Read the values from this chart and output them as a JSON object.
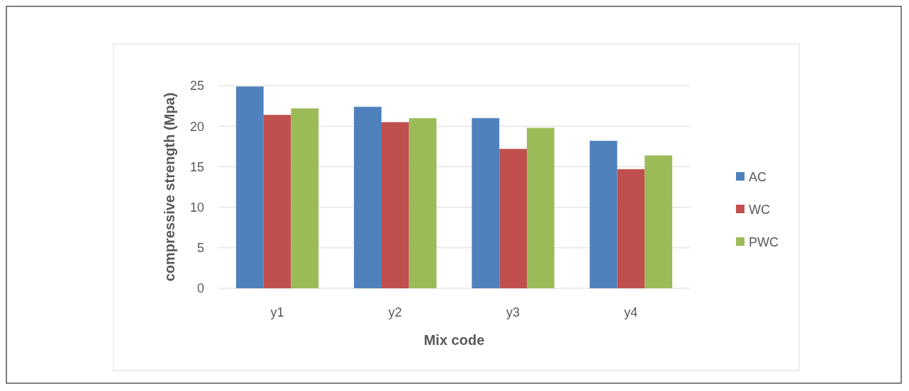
{
  "chart_data": {
    "type": "bar",
    "xlabel": "Mix code",
    "ylabel": "compressive strength (Mpa)",
    "categories": [
      "y1",
      "y2",
      "y3",
      "y4"
    ],
    "series": [
      {
        "name": "AC",
        "color": "#4f81bd",
        "values": [
          24.9,
          22.4,
          21.0,
          18.2
        ]
      },
      {
        "name": "WC",
        "color": "#c0504d",
        "values": [
          21.4,
          20.5,
          17.2,
          14.7
        ]
      },
      {
        "name": "PWC",
        "color": "#9bbb59",
        "values": [
          22.2,
          21.0,
          19.8,
          16.4
        ]
      }
    ],
    "ylim": [
      0,
      25
    ],
    "yticks": [
      0,
      5,
      10,
      15,
      20,
      25
    ],
    "grid": "y",
    "legend": "right"
  }
}
